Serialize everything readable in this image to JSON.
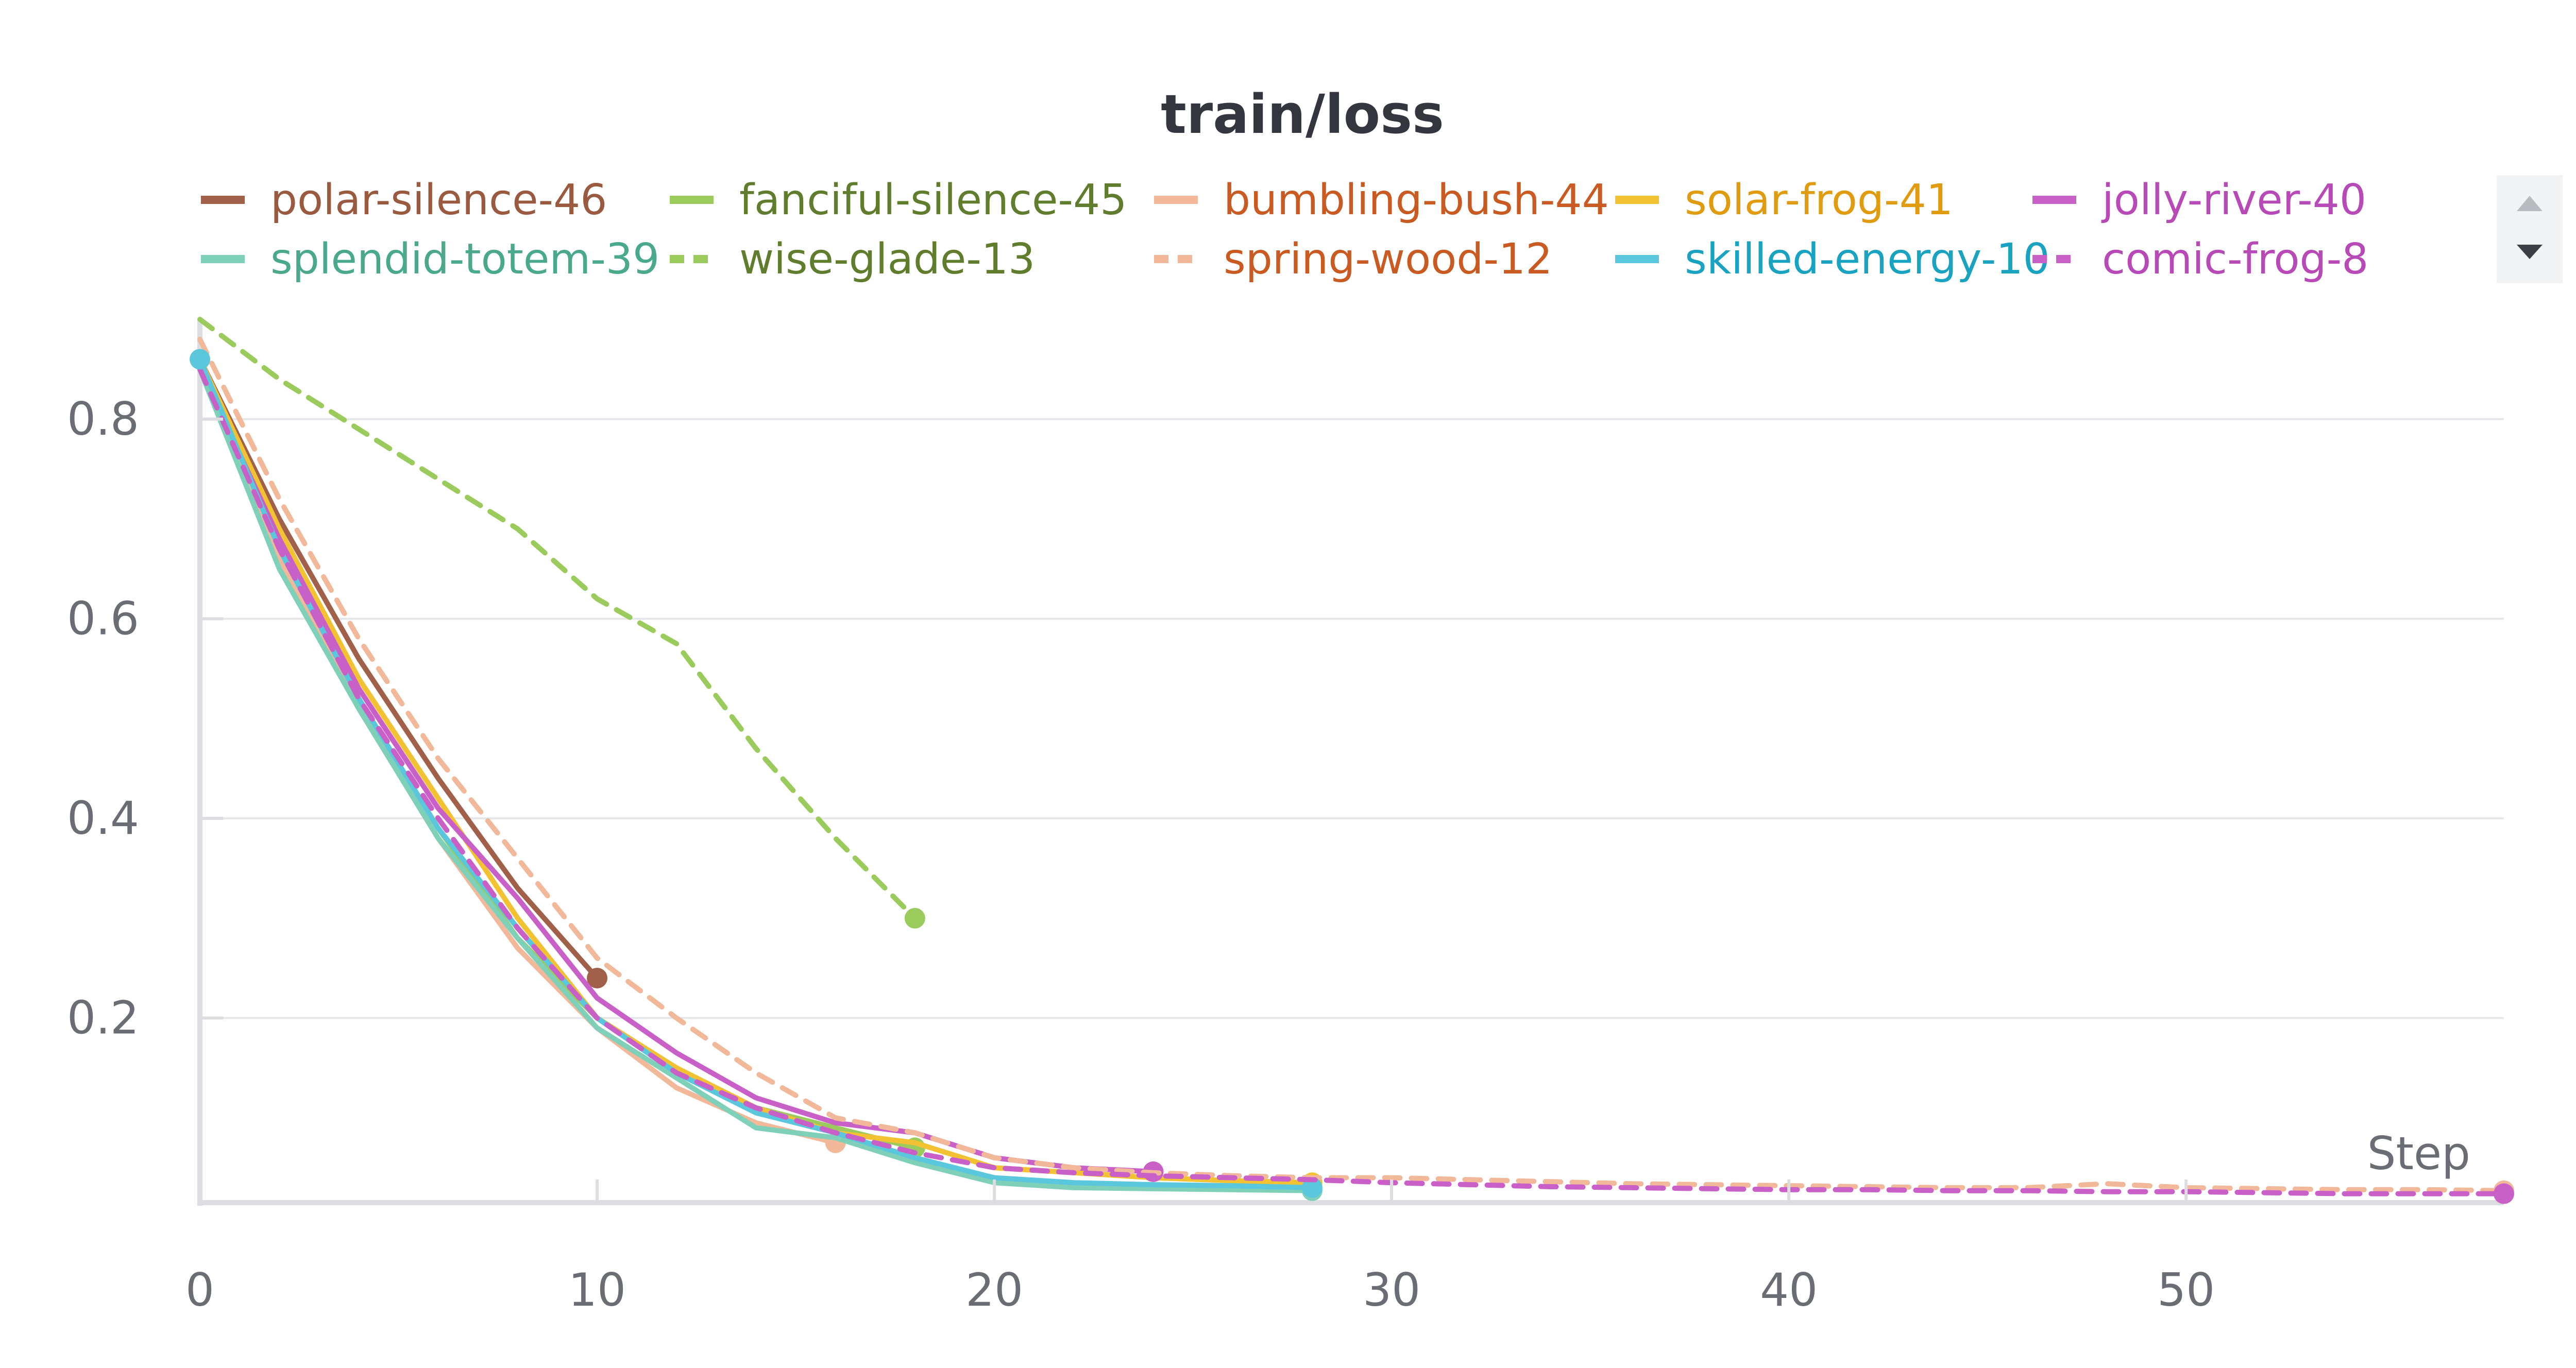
{
  "chart_data": {
    "type": "line",
    "title": "train/loss",
    "xlabel": "Step",
    "ylabel": "",
    "xlim": [
      0,
      58
    ],
    "ylim": [
      0.015,
      0.9
    ],
    "xticks": [
      0,
      10,
      20,
      30,
      40,
      50
    ],
    "yticks": [
      0.2,
      0.4,
      0.6,
      0.8
    ],
    "xtick_labels": [
      "0",
      "10",
      "20",
      "30",
      "40",
      "50"
    ],
    "ytick_labels": [
      "0.2",
      "0.4",
      "0.6",
      "0.8"
    ],
    "grid": true,
    "legend_position": "top",
    "series": [
      {
        "name": "polar-silence-46",
        "color": "#a0604a",
        "legend_text_color": "#9a5a40",
        "dashed": false,
        "x": [
          0,
          2,
          4,
          6,
          8,
          10
        ],
        "y": [
          0.86,
          0.7,
          0.56,
          0.44,
          0.33,
          0.24
        ]
      },
      {
        "name": "fanciful-silence-45",
        "color": "#9ccb5d",
        "legend_text_color": "#5f7d2c",
        "dashed": false,
        "x": [
          0,
          2,
          4,
          6,
          8,
          10,
          12,
          14,
          16,
          18
        ],
        "y": [
          0.85,
          0.66,
          0.52,
          0.39,
          0.28,
          0.2,
          0.15,
          0.11,
          0.09,
          0.07
        ]
      },
      {
        "name": "bumbling-bush-44",
        "color": "#f2b89a",
        "legend_text_color": "#c95a22",
        "dashed": false,
        "x": [
          0,
          2,
          4,
          6,
          8,
          10,
          12,
          14,
          16
        ],
        "y": [
          0.85,
          0.66,
          0.51,
          0.38,
          0.27,
          0.19,
          0.13,
          0.095,
          0.075
        ]
      },
      {
        "name": "solar-frog-41",
        "color": "#f2c232",
        "legend_text_color": "#e19b0f",
        "dashed": false,
        "x": [
          0,
          2,
          4,
          6,
          8,
          10,
          12,
          14,
          16,
          18,
          20,
          22,
          24,
          26,
          28
        ],
        "y": [
          0.86,
          0.69,
          0.54,
          0.42,
          0.3,
          0.2,
          0.15,
          0.11,
          0.085,
          0.075,
          0.05,
          0.045,
          0.04,
          0.037,
          0.035
        ]
      },
      {
        "name": "jolly-river-40",
        "color": "#c860c8",
        "legend_text_color": "#b84ab8",
        "dashed": false,
        "x": [
          0,
          2,
          4,
          6,
          8,
          10,
          12,
          14,
          16,
          18,
          20,
          22,
          24
        ],
        "y": [
          0.85,
          0.68,
          0.53,
          0.41,
          0.32,
          0.22,
          0.165,
          0.12,
          0.095,
          0.085,
          0.06,
          0.05,
          0.046
        ]
      },
      {
        "name": "splendid-totem-39",
        "color": "#7fd0b8",
        "legend_text_color": "#4aa98d",
        "dashed": false,
        "x": [
          0,
          2,
          4,
          6,
          8,
          10,
          12,
          14,
          16,
          18,
          20,
          22,
          24,
          26,
          28
        ],
        "y": [
          0.85,
          0.65,
          0.51,
          0.38,
          0.28,
          0.19,
          0.14,
          0.09,
          0.08,
          0.055,
          0.035,
          0.03,
          0.029,
          0.028,
          0.027
        ]
      },
      {
        "name": "wise-glade-13",
        "color": "#9ccb5d",
        "legend_text_color": "#5f7d2c",
        "dashed": true,
        "x": [
          0,
          2,
          4,
          6,
          8,
          10,
          12,
          14,
          16,
          18
        ],
        "y": [
          0.9,
          0.84,
          0.79,
          0.74,
          0.69,
          0.62,
          0.575,
          0.47,
          0.38,
          0.3
        ]
      },
      {
        "name": "spring-wood-12",
        "color": "#f2b89a",
        "legend_text_color": "#c95a22",
        "dashed": true,
        "x": [
          0,
          2,
          4,
          6,
          8,
          10,
          12,
          14,
          16,
          18,
          20,
          22,
          24,
          26,
          28,
          30,
          32,
          34,
          36,
          38,
          40,
          42,
          44,
          46,
          48,
          50,
          52,
          54,
          56,
          58
        ],
        "y": [
          0.88,
          0.72,
          0.58,
          0.46,
          0.36,
          0.26,
          0.2,
          0.145,
          0.1,
          0.085,
          0.06,
          0.05,
          0.045,
          0.042,
          0.04,
          0.04,
          0.038,
          0.036,
          0.034,
          0.033,
          0.032,
          0.031,
          0.03,
          0.03,
          0.034,
          0.03,
          0.029,
          0.028,
          0.028,
          0.027
        ]
      },
      {
        "name": "skilled-energy-10",
        "color": "#5bc7dd",
        "legend_text_color": "#1aa3c0",
        "dashed": false,
        "x": [
          0,
          2,
          4,
          6,
          8,
          10,
          12,
          14,
          16,
          18,
          20,
          22,
          24,
          26,
          28
        ],
        "y": [
          0.86,
          0.67,
          0.52,
          0.39,
          0.29,
          0.2,
          0.145,
          0.105,
          0.085,
          0.06,
          0.04,
          0.035,
          0.033,
          0.032,
          0.03
        ]
      },
      {
        "name": "comic-frog-8",
        "color": "#c860c8",
        "legend_text_color": "#b84ab8",
        "dashed": true,
        "x": [
          0,
          2,
          4,
          6,
          8,
          10,
          12,
          14,
          16,
          18,
          20,
          22,
          24,
          26,
          28,
          30,
          32,
          34,
          36,
          38,
          40,
          42,
          44,
          46,
          48,
          50,
          52,
          54,
          56,
          58
        ],
        "y": [
          0.85,
          0.67,
          0.52,
          0.4,
          0.29,
          0.2,
          0.145,
          0.11,
          0.085,
          0.065,
          0.05,
          0.045,
          0.042,
          0.04,
          0.038,
          0.035,
          0.033,
          0.031,
          0.03,
          0.029,
          0.028,
          0.028,
          0.027,
          0.027,
          0.026,
          0.026,
          0.025,
          0.024,
          0.024,
          0.024
        ]
      }
    ]
  }
}
